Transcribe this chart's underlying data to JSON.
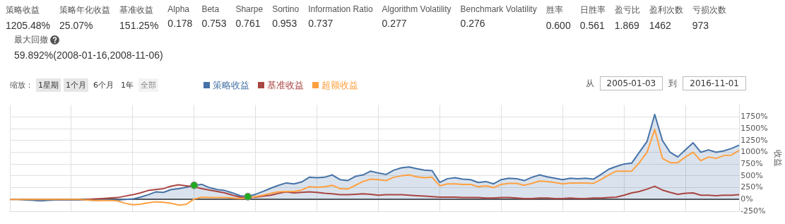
{
  "chart_data": [
    {
      "type": "other",
      "annotations": [
        "策略收益",
        "1205.48%",
        "策略年化收益",
        "25.07%",
        "基准收益",
        "151.25%",
        "Alpha",
        "0.178",
        "Beta",
        "0.753",
        "Sharpe",
        "0.761",
        "Sortino",
        "0.953",
        "Information Ratio",
        "0.737",
        "Algorithm Volatility",
        "0.277",
        "Benchmark Volatility",
        "0.276",
        "胜率",
        "0.600",
        "日胜率",
        "0.561",
        "盈亏比",
        "1.869",
        "盈利次数",
        "1462",
        "亏损次数",
        "973",
        "最大回撤",
        "59.892%(2008-01-16,2008-11-06)"
      ]
    },
    {
      "type": "area",
      "ylabel": "收益",
      "legend": "top",
      "grid": true,
      "tick_labels": "y",
      "ylim": [
        -250,
        2000
      ],
      "yticks": [
        {
          "value": -250,
          "label": "-250%"
        },
        {
          "value": 0,
          "label": "0%"
        },
        {
          "value": 250,
          "label": "250%"
        },
        {
          "value": 500,
          "label": "500%"
        },
        {
          "value": 750,
          "label": "750%"
        },
        {
          "value": 1000,
          "label": "1000%"
        },
        {
          "value": 1250,
          "label": "1250%"
        },
        {
          "value": 1500,
          "label": "1500%"
        },
        {
          "value": 1750,
          "label": "1750%"
        }
      ],
      "annotations": [
        "缩放：",
        "1星期",
        "1个月",
        "6个月",
        "1年",
        "全部",
        "从",
        "2005-01-03",
        "到",
        "2016-11-01"
      ],
      "categories": [
        null,
        null,
        null,
        null,
        null,
        null,
        null,
        null,
        null,
        null,
        null,
        null,
        null,
        null,
        null,
        null,
        null,
        null,
        null,
        null,
        null,
        null,
        null,
        null,
        null,
        null,
        null,
        null,
        null,
        null,
        null,
        null,
        null,
        null,
        null,
        null,
        null,
        null,
        null,
        null,
        null,
        null,
        null,
        null,
        null,
        null,
        null,
        null,
        null,
        null,
        null,
        null,
        null,
        null,
        null,
        null,
        null,
        null,
        null,
        null,
        null,
        null,
        null,
        null,
        null,
        null,
        null,
        null,
        null,
        null,
        null,
        null,
        null,
        null,
        null,
        null,
        null,
        null,
        null,
        null,
        null,
        null,
        null,
        null,
        null,
        null,
        null,
        null,
        null,
        null,
        null,
        null,
        null,
        null,
        null,
        null
      ],
      "series": [
        {
          "name": "策略收益",
          "type": "area",
          "color": "#4572a7",
          "values": [
            0,
            0,
            -10,
            -20,
            -30,
            -20,
            -10,
            -10,
            -10,
            -10,
            -10,
            -20,
            -10,
            -10,
            -10,
            0,
            10,
            50,
            100,
            160,
            150,
            210,
            230,
            260,
            300,
            320,
            250,
            210,
            190,
            140,
            80,
            60,
            110,
            170,
            240,
            300,
            350,
            330,
            370,
            470,
            460,
            470,
            520,
            420,
            400,
            490,
            520,
            600,
            560,
            530,
            620,
            670,
            690,
            650,
            620,
            610,
            360,
            440,
            460,
            430,
            420,
            360,
            380,
            330,
            420,
            450,
            440,
            400,
            470,
            520,
            480,
            450,
            420,
            450,
            440,
            450,
            430,
            530,
            640,
            700,
            750,
            770,
            1000,
            1230,
            1800,
            1250,
            1000,
            900,
            1050,
            1200,
            1000,
            1050,
            1000,
            1030,
            1080,
            1150
          ]
        },
        {
          "name": "基准收益",
          "type": "line",
          "color": "#aa4643",
          "values": [
            null,
            null,
            null,
            null,
            null,
            null,
            null,
            null,
            null,
            null,
            0,
            10,
            20,
            30,
            40,
            70,
            100,
            140,
            190,
            210,
            230,
            280,
            310,
            290,
            270,
            230,
            200,
            170,
            140,
            90,
            50,
            40,
            50,
            70,
            90,
            130,
            160,
            140,
            150,
            160,
            150,
            130,
            120,
            100,
            100,
            110,
            120,
            110,
            90,
            100,
            100,
            100,
            90,
            80,
            70,
            60,
            50,
            50,
            50,
            40,
            40,
            40,
            30,
            30,
            40,
            40,
            30,
            20,
            20,
            30,
            30,
            20,
            20,
            30,
            20,
            20,
            30,
            30,
            40,
            50,
            90,
            140,
            170,
            220,
            280,
            200,
            150,
            110,
            130,
            140,
            90,
            90,
            80,
            90,
            90,
            100
          ]
        },
        {
          "name": "超额收益",
          "type": "line",
          "color": "#ffa040",
          "values": [
            0,
            0,
            0,
            0,
            0,
            0,
            0,
            0,
            0,
            0,
            -10,
            -20,
            -20,
            -20,
            -30,
            -80,
            -110,
            -100,
            -70,
            -50,
            -60,
            -80,
            -120,
            -100,
            10,
            50,
            40,
            40,
            40,
            30,
            20,
            30,
            60,
            90,
            130,
            160,
            170,
            170,
            200,
            270,
            260,
            270,
            300,
            230,
            220,
            300,
            380,
            430,
            420,
            400,
            470,
            500,
            520,
            480,
            460,
            470,
            290,
            330,
            330,
            320,
            320,
            270,
            290,
            250,
            320,
            340,
            340,
            300,
            340,
            390,
            380,
            360,
            330,
            350,
            350,
            350,
            340,
            420,
            520,
            600,
            600,
            600,
            780,
            1000,
            1480,
            870,
            780,
            780,
            900,
            1000,
            820,
            900,
            870,
            930,
            940,
            1040
          ]
        },
        {
          "type": "scatter",
          "color": "#22aa22",
          "marker": "circle",
          "values": [
            null,
            null,
            null,
            null,
            null,
            null,
            null,
            null,
            null,
            null,
            null,
            null,
            null,
            null,
            null,
            null,
            null,
            null,
            null,
            null,
            null,
            null,
            null,
            null,
            300,
            null,
            null,
            null,
            null,
            null,
            null,
            60,
            null,
            null,
            null,
            null,
            null,
            null,
            null,
            null,
            null,
            null,
            null,
            null,
            null,
            null,
            null,
            null,
            null,
            null,
            null,
            null,
            null,
            null,
            null,
            null,
            null,
            null,
            null,
            null,
            null,
            null,
            null,
            null,
            null,
            null,
            null,
            null,
            null,
            null,
            null,
            null,
            null,
            null,
            null,
            null,
            null,
            null,
            null,
            null,
            null,
            null,
            null,
            null,
            null,
            null,
            null,
            null,
            null,
            null,
            null,
            null,
            null,
            null,
            null,
            null
          ]
        }
      ]
    }
  ]
}
